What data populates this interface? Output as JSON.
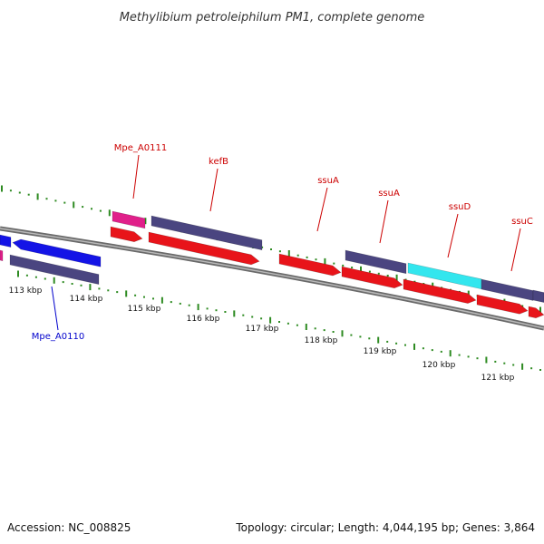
{
  "title": "Methylibium petroleiphilum PM1, complete genome",
  "footer": {
    "accession": "Accession: NC_008825",
    "summary": "Topology: circular; Length: 4,044,195 bp; Genes: 3,864"
  },
  "colors": {
    "forward_label": "#cc0000",
    "reverse_label": "#0000cc",
    "backbone": "#888888",
    "tick": "#2e8b22",
    "cds_red": "#e8141a",
    "gene_purple": "#4a4580",
    "gene_pink": "#e0208a",
    "gene_cyan": "#33e6ee",
    "gene_blue": "#1414e6"
  },
  "map": {
    "kbp_labels": [
      "113 kbp",
      "114 kbp",
      "115 kbp",
      "116 kbp",
      "117 kbp",
      "118 kbp",
      "119 kbp",
      "120 kbp",
      "121 kbp"
    ],
    "gene_labels": [
      {
        "text": "Mpe_A0111",
        "strand": "forward"
      },
      {
        "text": "kefB",
        "strand": "forward"
      },
      {
        "text": "ssuA",
        "strand": "forward"
      },
      {
        "text": "ssuA",
        "strand": "forward"
      },
      {
        "text": "ssuD",
        "strand": "forward"
      },
      {
        "text": "ssuC",
        "strand": "forward"
      },
      {
        "text": "Mpe_A0110",
        "strand": "reverse"
      }
    ]
  }
}
